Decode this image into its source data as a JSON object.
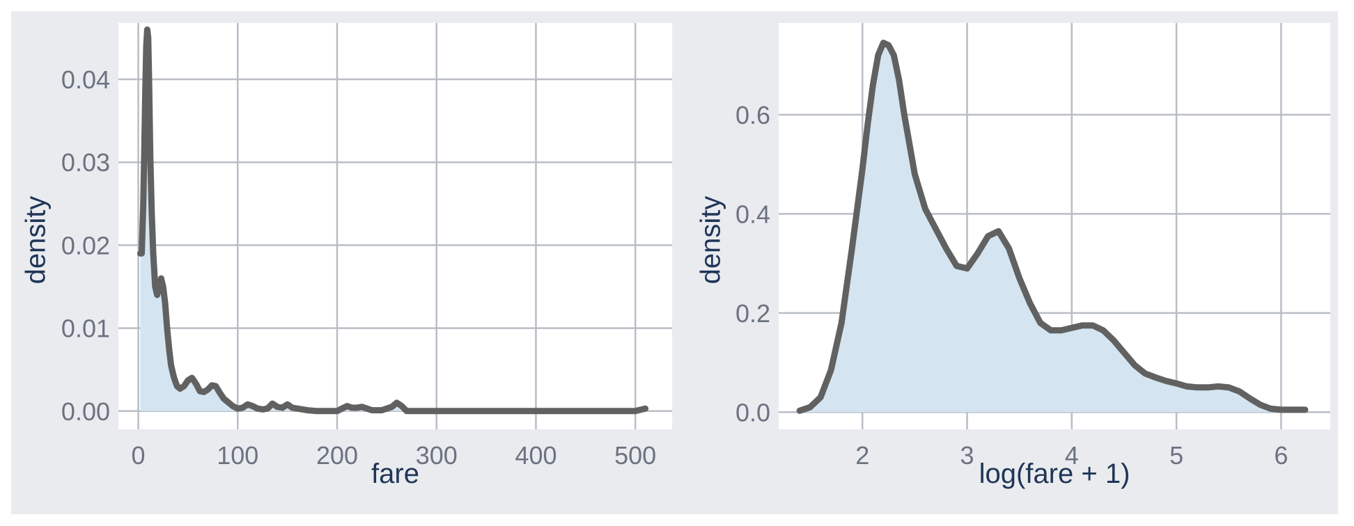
{
  "colors": {
    "background": "#e9ebef",
    "panel": "#ffffff",
    "grid": "#b9bdc6",
    "line": "#616161",
    "fill": "#d4e5f1",
    "tick_text": "#6b7280",
    "title_text": "#1f3556"
  },
  "chart_data": [
    {
      "type": "area",
      "xlabel": "fare",
      "ylabel": "density",
      "grid": true,
      "xlim": [
        -20,
        537
      ],
      "ylim": [
        -0.0022,
        0.0468
      ],
      "xticks": [
        0,
        100,
        200,
        300,
        400,
        500
      ],
      "yticks": [
        0.0,
        0.01,
        0.02,
        0.03,
        0.04
      ],
      "xtick_labels": [
        "0",
        "100",
        "200",
        "300",
        "400",
        "500"
      ],
      "ytick_labels": [
        "0.00",
        "0.01",
        "0.02",
        "0.03",
        "0.04"
      ],
      "series": [
        {
          "x": [
            2,
            3.5,
            5,
            6,
            7,
            8,
            9,
            10,
            11,
            12,
            13.5,
            15,
            17,
            19,
            21,
            23,
            25,
            27,
            29,
            31,
            33,
            36,
            39,
            42,
            46,
            50,
            54,
            58,
            62,
            66,
            70,
            74,
            78,
            82,
            86,
            90,
            95,
            100,
            105,
            110,
            115,
            120,
            125,
            130,
            135,
            140,
            145,
            150,
            155,
            160,
            170,
            180,
            190,
            200,
            205,
            210,
            215,
            220,
            225,
            230,
            235,
            240,
            245,
            250,
            255,
            260,
            265,
            270,
            280,
            300,
            350,
            400,
            450,
            500,
            510
          ],
          "y": [
            0.019,
            0.019,
            0.025,
            0.031,
            0.038,
            0.044,
            0.046,
            0.045,
            0.039,
            0.031,
            0.024,
            0.019,
            0.015,
            0.014,
            0.015,
            0.016,
            0.015,
            0.013,
            0.01,
            0.0075,
            0.0055,
            0.004,
            0.003,
            0.0027,
            0.003,
            0.0037,
            0.004,
            0.0033,
            0.0024,
            0.0023,
            0.0026,
            0.0031,
            0.003,
            0.0022,
            0.0015,
            0.0011,
            0.0006,
            0.0003,
            0.0004,
            0.0008,
            0.0006,
            0.0003,
            0.0002,
            0.0003,
            0.0009,
            0.0005,
            0.0004,
            0.0008,
            0.0004,
            0.0003,
            0.0001,
            0.0,
            0.0,
            0.0,
            0.0003,
            0.0006,
            0.0004,
            0.0004,
            0.0005,
            0.0003,
            0.0001,
            0.0001,
            0.0001,
            0.0003,
            0.0005,
            0.001,
            0.0006,
            0.0,
            0.0,
            0.0,
            0.0,
            0.0,
            0.0,
            0.0,
            0.0003
          ]
        }
      ]
    },
    {
      "type": "area",
      "xlabel": "log(fare + 1)",
      "ylabel": "density",
      "grid": true,
      "xlim": [
        1.2,
        6.47
      ],
      "ylim": [
        -0.0345,
        0.785
      ],
      "xticks": [
        2,
        3,
        4,
        5,
        6
      ],
      "yticks": [
        0.0,
        0.2,
        0.4,
        0.6
      ],
      "xtick_labels": [
        "2",
        "3",
        "4",
        "5",
        "6"
      ],
      "ytick_labels": [
        "0.0",
        "0.2",
        "0.4",
        "0.6"
      ],
      "series": [
        {
          "x": [
            1.4,
            1.5,
            1.6,
            1.7,
            1.8,
            1.9,
            2.0,
            2.05,
            2.1,
            2.15,
            2.2,
            2.25,
            2.3,
            2.35,
            2.4,
            2.5,
            2.6,
            2.7,
            2.8,
            2.9,
            3.0,
            3.1,
            3.2,
            3.3,
            3.4,
            3.5,
            3.6,
            3.7,
            3.8,
            3.9,
            4.0,
            4.1,
            4.2,
            4.3,
            4.4,
            4.5,
            4.6,
            4.7,
            4.8,
            4.9,
            5.0,
            5.1,
            5.2,
            5.3,
            5.4,
            5.5,
            5.6,
            5.7,
            5.8,
            5.9,
            6.0,
            6.1,
            6.23
          ],
          "y": [
            0.003,
            0.01,
            0.03,
            0.085,
            0.18,
            0.33,
            0.49,
            0.58,
            0.66,
            0.72,
            0.745,
            0.74,
            0.72,
            0.67,
            0.6,
            0.48,
            0.41,
            0.37,
            0.33,
            0.295,
            0.29,
            0.32,
            0.355,
            0.365,
            0.33,
            0.27,
            0.22,
            0.18,
            0.165,
            0.165,
            0.17,
            0.175,
            0.175,
            0.165,
            0.145,
            0.12,
            0.095,
            0.078,
            0.07,
            0.063,
            0.058,
            0.052,
            0.05,
            0.05,
            0.052,
            0.05,
            0.042,
            0.028,
            0.015,
            0.007,
            0.005,
            0.005,
            0.005
          ]
        }
      ]
    }
  ]
}
